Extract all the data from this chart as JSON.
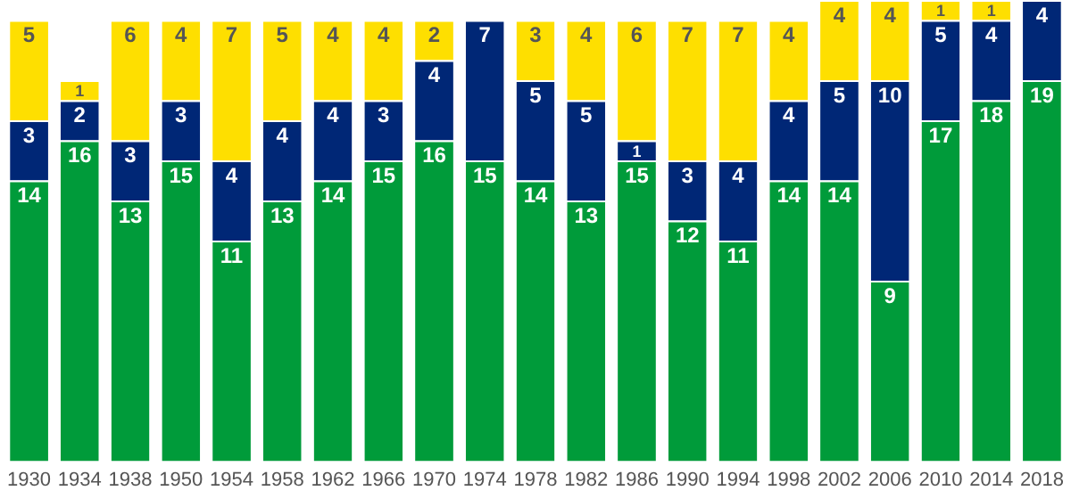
{
  "chart_data": {
    "type": "bar",
    "stacked": true,
    "data_labels": true,
    "legend": false,
    "grid": false,
    "tick_labels": "x",
    "categories": [
      "1930",
      "1934",
      "1938",
      "1950",
      "1954",
      "1958",
      "1962",
      "1966",
      "1970",
      "1974",
      "1978",
      "1982",
      "1986",
      "1990",
      "1994",
      "1998",
      "2002",
      "2006",
      "2010",
      "2014",
      "2018"
    ],
    "ylim": [
      0,
      23
    ],
    "series": [
      {
        "color": "#009b3a",
        "values": [
          14,
          16,
          13,
          15,
          11,
          13,
          14,
          15,
          16,
          15,
          14,
          13,
          15,
          12,
          11,
          14,
          14,
          9,
          17,
          18,
          19
        ]
      },
      {
        "color": "#002776",
        "values": [
          3,
          2,
          3,
          3,
          4,
          4,
          4,
          3,
          4,
          7,
          5,
          5,
          1,
          3,
          4,
          4,
          5,
          10,
          5,
          4,
          4
        ]
      },
      {
        "color": "#fedf00",
        "values": [
          5,
          1,
          6,
          4,
          7,
          5,
          4,
          4,
          2,
          null,
          3,
          4,
          6,
          7,
          7,
          4,
          4,
          4,
          1,
          1,
          null
        ]
      }
    ]
  }
}
